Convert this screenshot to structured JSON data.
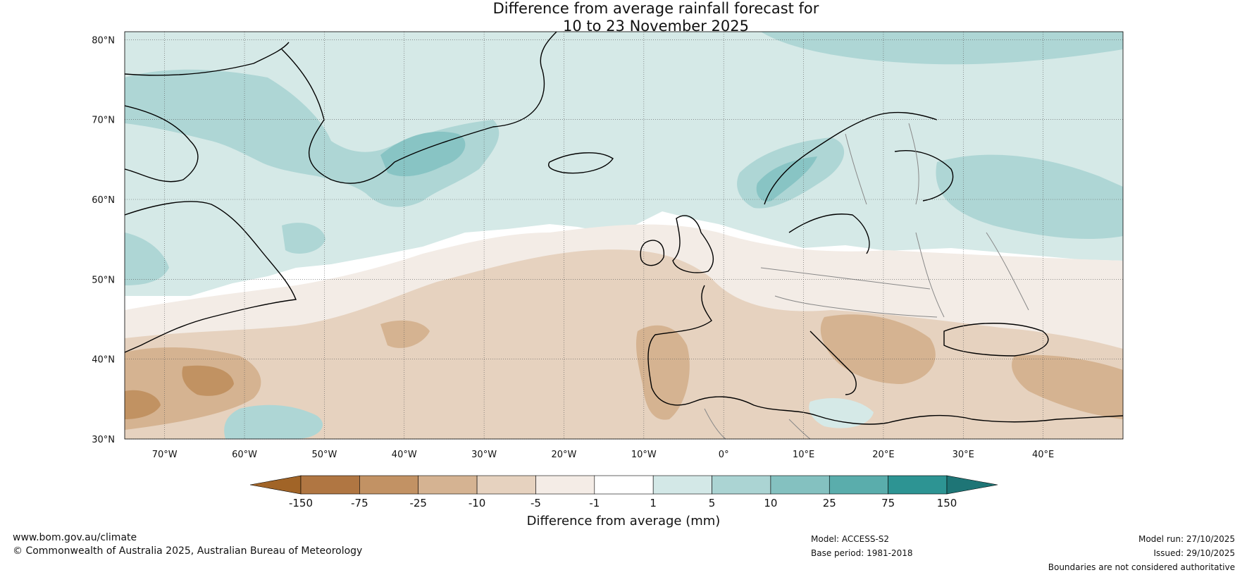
{
  "title": {
    "line1": "Difference from average rainfall forecast for",
    "line2": "10 to 23 November 2025"
  },
  "map": {
    "latitude_labels": [
      "80°N",
      "70°N",
      "60°N",
      "50°N",
      "40°N",
      "30°N"
    ],
    "longitude_labels": [
      "70°W",
      "60°W",
      "50°W",
      "40°W",
      "30°W",
      "20°W",
      "10°W",
      "0°",
      "10°E",
      "20°E",
      "30°E",
      "40°E"
    ],
    "lat_range": [
      30,
      81
    ],
    "lon_range": [
      -75,
      50
    ],
    "colors": {
      "dry_strong": "#c19262",
      "dry_medium": "#d5b391",
      "dry_light": "#e6d2bf",
      "dry_faint": "#f3ece6",
      "wet_faint": "#d5e9e7",
      "wet_light": "#aed6d5",
      "wet_medium": "#88c4c4",
      "coast": "#000000",
      "border": "#888888"
    }
  },
  "legend": {
    "title": "Difference from average (mm)",
    "ticks": [
      "-150",
      "-75",
      "-25",
      "-10",
      "-5",
      "-1",
      "1",
      "5",
      "10",
      "25",
      "75",
      "150"
    ],
    "colors": [
      "#a16427",
      "#b07642",
      "#c29264",
      "#d5b392",
      "#e6d2bf",
      "#f4ece6",
      "#ffffff",
      "#d3e8e7",
      "#abd4d3",
      "#84c1c0",
      "#5aadac",
      "#2d9493",
      "#1e7576"
    ]
  },
  "footer": {
    "website": "www.bom.gov.au/climate",
    "copyright": "© Commonwealth of Australia 2025, Australian Bureau of Meteorology",
    "model": "Model: ACCESS-S2",
    "base_period": "Base period: 1981-2018",
    "model_run": "Model run: 27/10/2025",
    "issued": "Issued: 29/10/2025",
    "disclaimer": "Boundaries are not considered authoritative"
  }
}
